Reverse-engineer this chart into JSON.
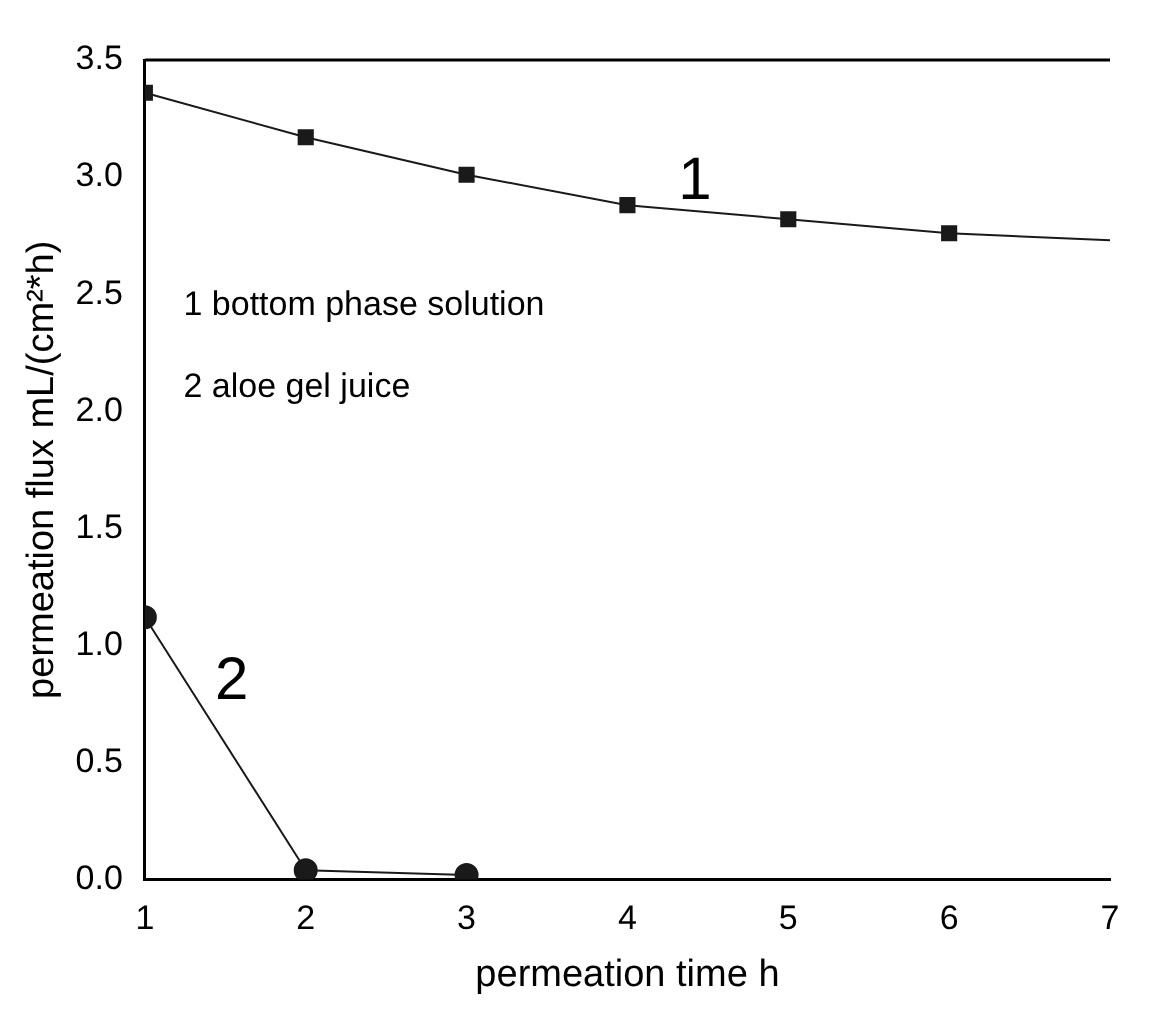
{
  "chart_data": {
    "type": "scatter",
    "xlabel": "permeation time h",
    "ylabel": "permeation flux mL/(cm²*h)",
    "xlim": [
      1,
      7
    ],
    "xticks": [
      1,
      2,
      3,
      4,
      5,
      6,
      7
    ],
    "ylim": [
      0,
      3.5
    ],
    "yticks": [
      {
        "value": 0,
        "label": "0.0"
      },
      0.5,
      {
        "value": 1,
        "label": "1.0"
      },
      1.5,
      {
        "value": 2,
        "label": "2.0"
      },
      2.5,
      {
        "value": 3,
        "label": "3.0"
      },
      3.5
    ],
    "grid": false,
    "legend": false,
    "series": [
      {
        "type": "line",
        "color": "#1a1a1a",
        "marker": "none",
        "x": [
          1,
          2,
          3,
          4,
          5,
          6,
          7
        ],
        "values": [
          3.36,
          3.17,
          3.01,
          2.88,
          2.82,
          2.76,
          2.73
        ]
      },
      {
        "type": "scatter",
        "color": "#1a1a1a",
        "marker": "square",
        "x": [
          1,
          2,
          3,
          4,
          5,
          6
        ],
        "values": [
          3.36,
          3.17,
          3.01,
          2.88,
          2.82,
          2.76
        ]
      },
      {
        "type": "line",
        "color": "#1a1a1a",
        "marker": "circle",
        "x": [
          1,
          2,
          3
        ],
        "values": [
          1.12,
          0.04,
          0.02
        ]
      }
    ],
    "annotations": [
      "1",
      "2",
      "1 bottom phase solution",
      "2 aloe gel juice"
    ]
  }
}
